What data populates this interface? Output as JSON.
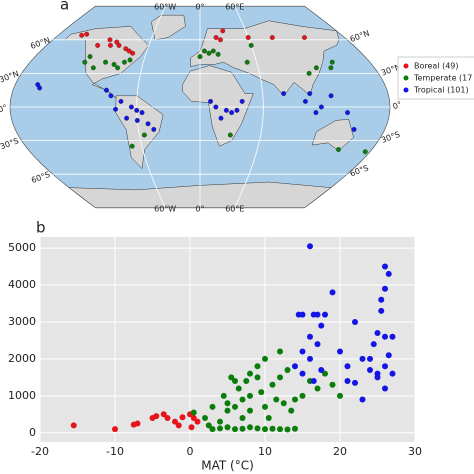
{
  "chart_data": [
    {
      "type": "map",
      "panel": "a",
      "xticks": [
        {
          "value": -60,
          "label": "60°W"
        },
        {
          "value": 0,
          "label": "0°"
        },
        {
          "value": 60,
          "label": "60°E"
        }
      ],
      "yticks": [
        {
          "value": 60,
          "label": "60°N"
        },
        {
          "value": 30,
          "label": "30°N"
        },
        {
          "value": 0,
          "label": "0°"
        },
        {
          "value": -30,
          "label": "30°S"
        },
        {
          "value": -60,
          "label": "60°S"
        }
      ],
      "series": [
        {
          "name": "Boreal (49)",
          "color": "#e8141c",
          "x": [
            -150,
            -145,
            -105,
            -100,
            -95,
            -85,
            -80,
            -110,
            -75,
            -120,
            20,
            25,
            60,
            90,
            130,
            30
          ],
          "values": [
            64,
            65,
            55,
            58,
            55,
            52,
            50,
            60,
            48,
            55,
            62,
            60,
            62,
            62,
            62,
            68
          ]
        },
        {
          "name": "Temperate (17",
          "color": "#0a7d0a",
          "x": [
            -120,
            -122,
            -100,
            -90,
            -80,
            -75,
            -85,
            -110,
            5,
            10,
            15,
            0,
            20,
            60,
            110,
            120,
            135,
            140,
            -70,
            -55,
            145,
            175,
            30,
            50
          ],
          "values": [
            45,
            40,
            40,
            38,
            40,
            42,
            35,
            35,
            50,
            48,
            50,
            45,
            47,
            55,
            30,
            35,
            35,
            40,
            -35,
            -25,
            -38,
            -40,
            -25,
            40
          ]
        },
        {
          "name": "Tropical (101)",
          "color": "#1414e6",
          "x": [
            -158,
            -155,
            -90,
            -85,
            -75,
            -65,
            -60,
            -55,
            -70,
            -60,
            -50,
            -45,
            -80,
            10,
            15,
            25,
            30,
            35,
            20,
            40,
            80,
            100,
            105,
            115,
            125,
            140,
            110,
            150
          ],
          "values": [
            20,
            17,
            15,
            10,
            5,
            0,
            -3,
            -5,
            -10,
            -12,
            -15,
            -20,
            -2,
            5,
            0,
            -3,
            -5,
            -3,
            -10,
            5,
            12,
            5,
            12,
            0,
            10,
            -5,
            -5,
            -20
          ]
        }
      ]
    },
    {
      "type": "scatter",
      "panel": "b",
      "xlabel": "MAT (°C)",
      "xlim": [
        -20,
        30
      ],
      "xticks": [
        -20,
        -10,
        0,
        10,
        20,
        30
      ],
      "ylim": [
        -250,
        5300
      ],
      "yticks": [
        0,
        1000,
        2000,
        3000,
        4000,
        5000
      ],
      "grid": true,
      "series": [
        {
          "name": "Boreal",
          "color": "#e8141c",
          "x": [
            -15.5,
            -10,
            -7.5,
            -7,
            -5,
            -4.5,
            -3,
            -2,
            -1,
            0,
            0.5,
            1,
            -1.5,
            -3.5,
            0.2
          ],
          "values": [
            200,
            100,
            220,
            250,
            400,
            450,
            400,
            300,
            420,
            500,
            400,
            300,
            200,
            500,
            150
          ]
        },
        {
          "name": "Temperate",
          "color": "#0a7d0a",
          "x": [
            0.5,
            2,
            2.5,
            3,
            4,
            4.5,
            5,
            5.5,
            6,
            6.5,
            7,
            7.5,
            8,
            8,
            9,
            9.5,
            10,
            10.5,
            11,
            11.5,
            12,
            12.5,
            13,
            13.5,
            14,
            15,
            16,
            17,
            18,
            19,
            20,
            8,
            9,
            10,
            11,
            12,
            13,
            14,
            7,
            6,
            5,
            4,
            8,
            9,
            6,
            10,
            12,
            5,
            3,
            7
          ],
          "values": [
            550,
            400,
            200,
            100,
            300,
            1000,
            600,
            1500,
            700,
            1200,
            900,
            1400,
            1600,
            600,
            1800,
            1100,
            700,
            400,
            1300,
            900,
            1500,
            800,
            1700,
            600,
            900,
            1000,
            1400,
            1200,
            1600,
            1300,
            1000,
            150,
            120,
            100,
            110,
            100,
            90,
            110,
            110,
            100,
            150,
            120,
            1000,
            1500,
            1400,
            2000,
            2200,
            800,
            700,
            400
          ]
        },
        {
          "name": "Tropical",
          "color": "#1414e6",
          "x": [
            14,
            15,
            15,
            16,
            16.5,
            17,
            17.5,
            16,
            16,
            16.5,
            17,
            14.5,
            18,
            19,
            21,
            21,
            22,
            23,
            24,
            24.5,
            25,
            25,
            25.5,
            26,
            26,
            26.5,
            27,
            26,
            26,
            25,
            27,
            24,
            20,
            22,
            23,
            26,
            15,
            17.5,
            25.5,
            26.5
          ],
          "values": [
            1800,
            2200,
            3200,
            5050,
            3200,
            3200,
            2900,
            2600,
            2000,
            1400,
            2400,
            3200,
            3200,
            3800,
            1800,
            1400,
            1350,
            900,
            2000,
            2400,
            1600,
            2700,
            3300,
            2600,
            4500,
            4300,
            2600,
            3900,
            1800,
            1500,
            1600,
            1700,
            2200,
            3000,
            2000,
            1200,
            1600,
            1700,
            3600,
            2100
          ]
        }
      ]
    }
  ]
}
